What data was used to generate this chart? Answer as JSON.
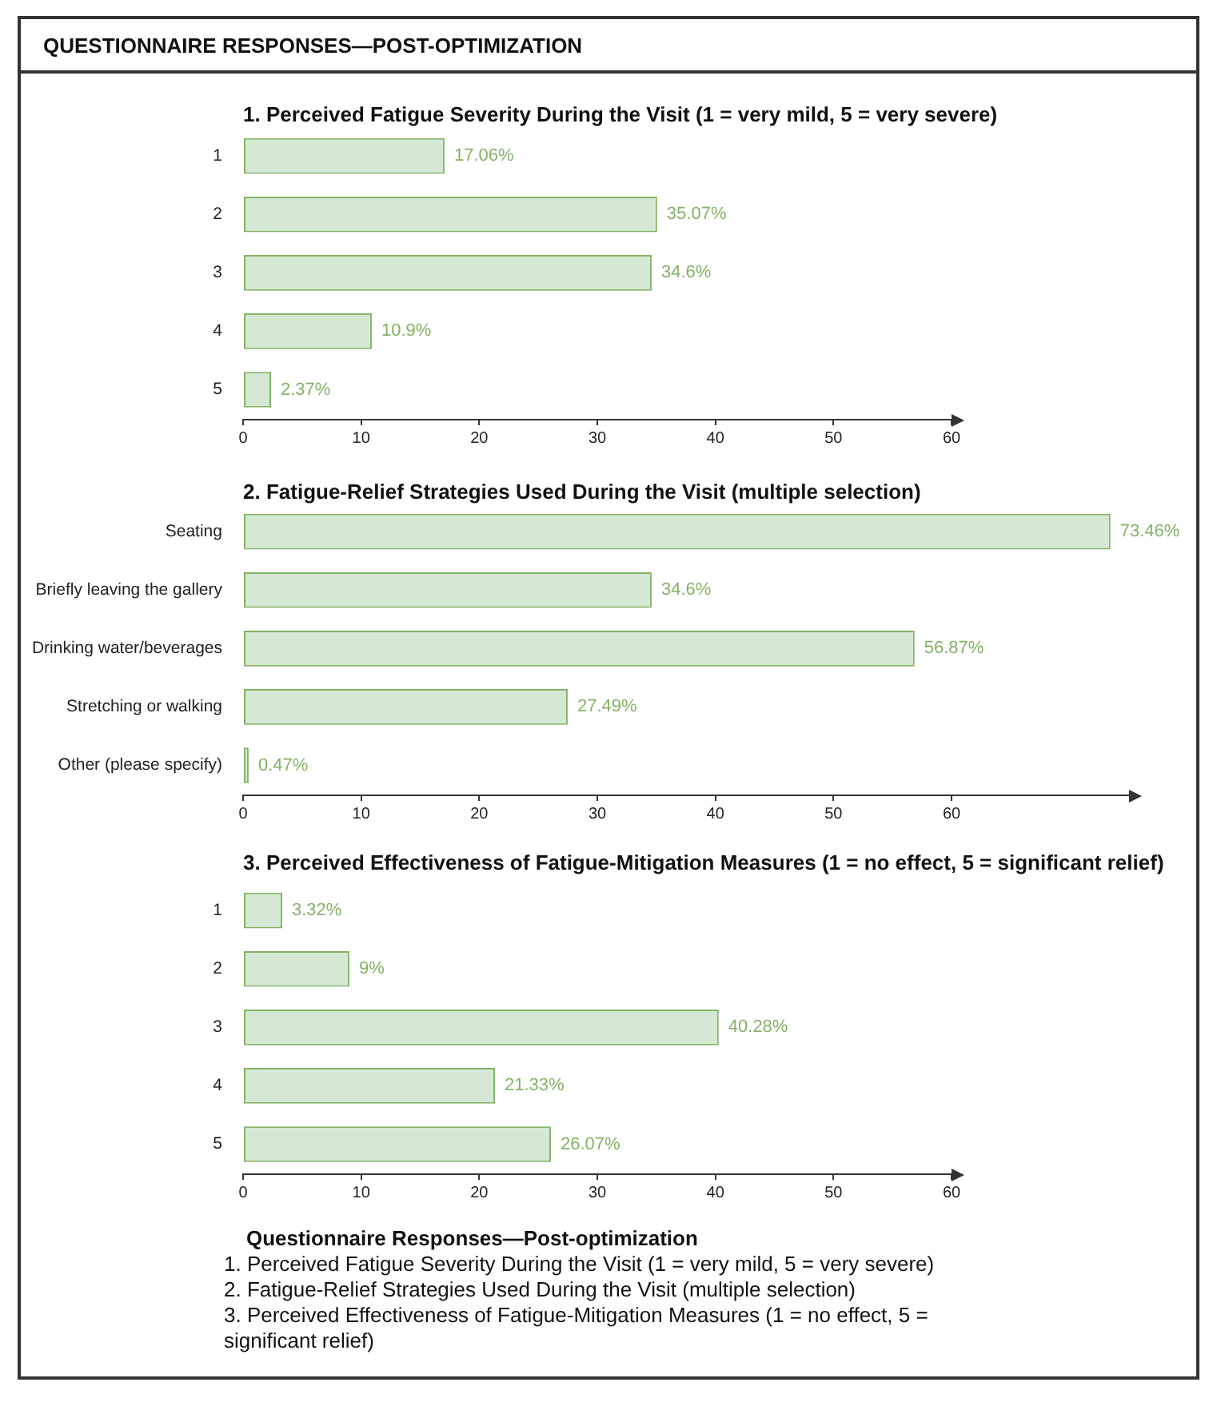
{
  "chart_data": [
    {
      "type": "bar",
      "orientation": "horizontal",
      "title": "1. Perceived Fatigue Severity During the Visit (1 = very mild, 5 = very severe)",
      "annotations": [
        "QUESTIONNAIRE RESPONSES—POST-OPTIMIZATION"
      ],
      "categories": [
        "1",
        "2",
        "3",
        "4",
        "5"
      ],
      "values": [
        17.06,
        35.07,
        34.6,
        10.9,
        2.37
      ],
      "value_labels": [
        "17.06%",
        "35.07%",
        "34.6%",
        "10.9%",
        "2.37%"
      ],
      "color": "#d5e8d4",
      "xlim": [
        0,
        60
      ],
      "xticks": [
        0,
        10,
        20,
        30,
        40,
        50,
        60
      ]
    },
    {
      "type": "bar",
      "orientation": "horizontal",
      "title": "2. Fatigue-Relief Strategies Used During the Visit (multiple selection)",
      "categories": [
        "Seating",
        "Briefly leaving the gallery",
        "Drinking water/beverages",
        "Stretching or walking",
        "Other (please specify)"
      ],
      "values": [
        73.46,
        34.6,
        56.87,
        27.49,
        0.47
      ],
      "value_labels": [
        "73.46%",
        "34.6%",
        "56.87%",
        "27.49%",
        "0.47%"
      ],
      "color": "#d5e8d4",
      "xlim": [
        0,
        75
      ],
      "xticks": [
        0,
        10,
        20,
        30,
        40,
        50,
        60
      ]
    },
    {
      "type": "bar",
      "orientation": "horizontal",
      "title": "3. Perceived Effectiveness of Fatigue-Mitigation Measures (1 = no effect, 5 = significant relief)",
      "annotations": [
        "Questionnaire Responses—Post-optimization",
        "1. Perceived Fatigue Severity During the Visit (1 = very mild, 5 = very severe)",
        "2. Fatigue-Relief Strategies Used During the Visit (multiple selection)",
        "3. Perceived Effectiveness of Fatigue-Mitigation Measures (1 = no effect, 5 = significant relief)"
      ],
      "categories": [
        "1",
        "2",
        "3",
        "4",
        "5"
      ],
      "values": [
        3.32,
        9,
        40.28,
        21.33,
        26.07
      ],
      "value_labels": [
        "3.32%",
        "9%",
        "40.28%",
        "21.33%",
        "26.07%"
      ],
      "color": "#d5e8d4",
      "xlim": [
        0,
        60
      ],
      "xticks": [
        0,
        10,
        20,
        30,
        40,
        50,
        60
      ]
    }
  ]
}
